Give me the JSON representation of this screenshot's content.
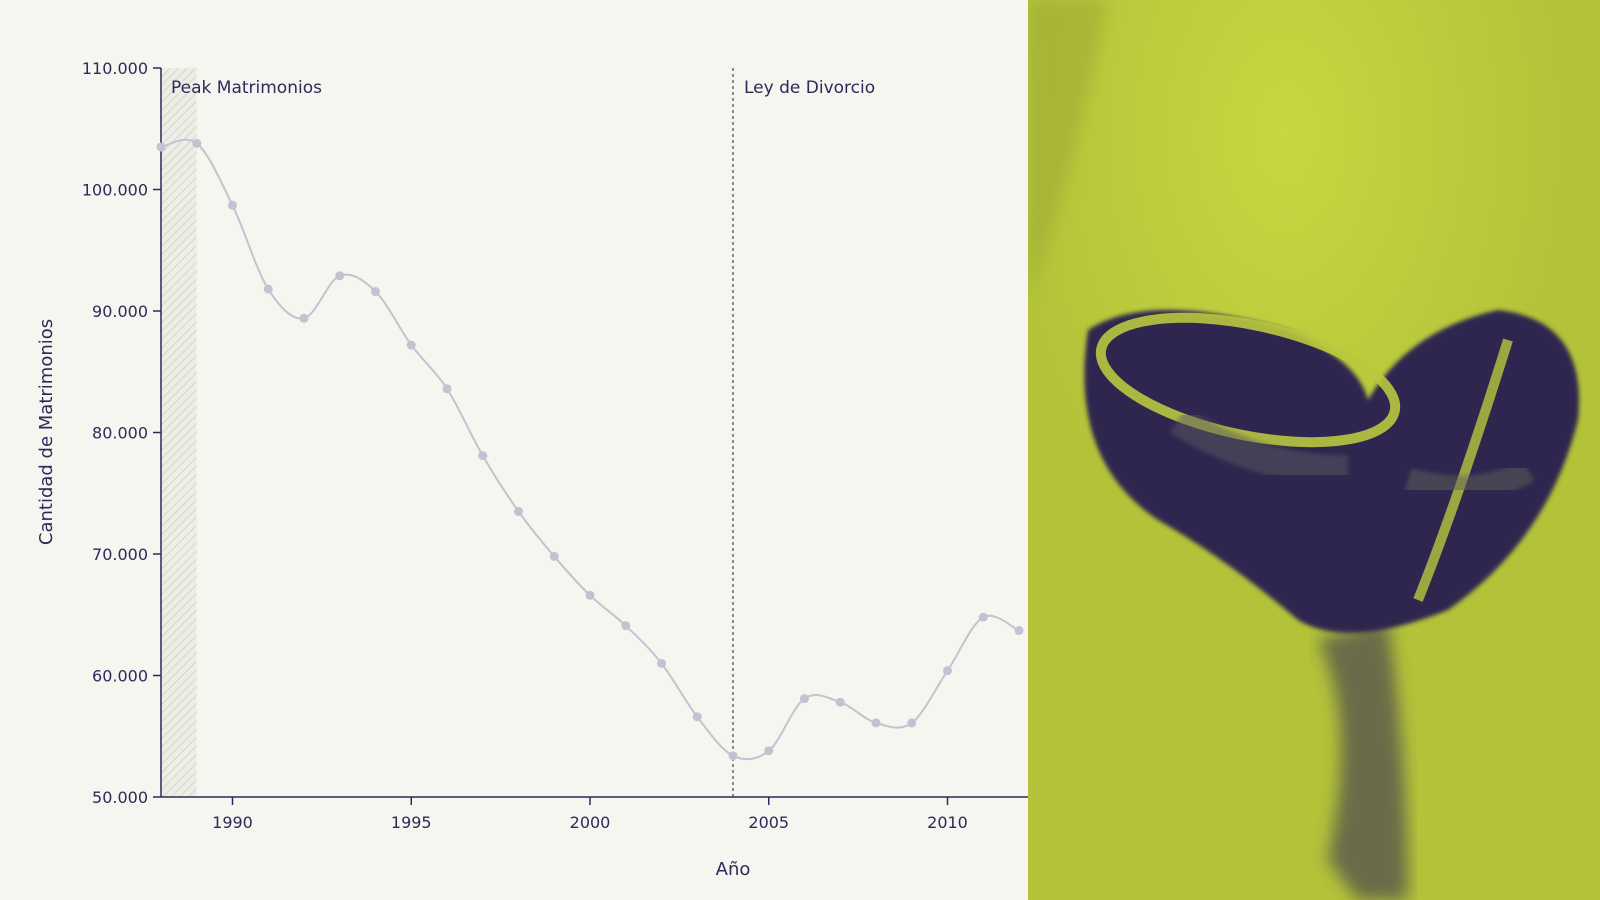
{
  "chart_data": {
    "type": "line",
    "xlabel": "Año",
    "ylabel": "Cantidad de Matrimonios",
    "xlim": [
      1988,
      2012
    ],
    "ylim": [
      50000,
      110000
    ],
    "x_ticks": [
      "1990",
      "1995",
      "2000",
      "2005",
      "2010"
    ],
    "y_ticks": [
      "50.000",
      "60.000",
      "70.000",
      "80.000",
      "90.000",
      "100.000",
      "110.000"
    ],
    "x": [
      1988,
      1989,
      1990,
      1991,
      1992,
      1993,
      1994,
      1995,
      1996,
      1997,
      1998,
      1999,
      2000,
      2001,
      2002,
      2003,
      2004,
      2005,
      2006,
      2007,
      2008,
      2009,
      2010,
      2011,
      2012
    ],
    "values": [
      103500,
      103800,
      98700,
      91800,
      89400,
      92900,
      91600,
      87200,
      83600,
      78100,
      73500,
      69800,
      66600,
      64100,
      61000,
      56600,
      53400,
      53800,
      58100,
      57800,
      56100,
      56100,
      60400,
      64800,
      63700
    ],
    "line_color": "#c4c2d0",
    "axis_color": "#2d2a5a",
    "annotations": [
      {
        "label": "Peak Matrimonios",
        "type": "shaded-band",
        "x_range": [
          1988,
          1989
        ]
      },
      {
        "label": "Ley de Divorcio",
        "type": "dashed-vline",
        "x": 2004
      }
    ],
    "grid": false
  },
  "photo": {
    "description_icon": "wedding-rings-heart-image",
    "tint": "#b5c43a",
    "shadow": "#2a2250"
  }
}
